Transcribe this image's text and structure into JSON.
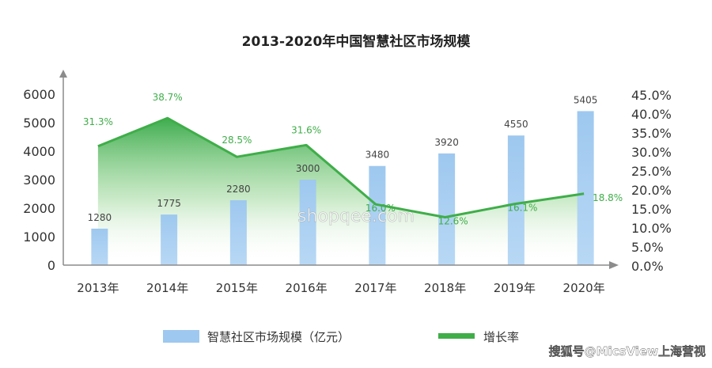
{
  "chart_data": {
    "type": "bar",
    "title": "2013-2020年中国智慧社区市场规模",
    "categories": [
      "2013年",
      "2014年",
      "2015年",
      "2016年",
      "2017年",
      "2018年",
      "2019年",
      "2020年"
    ],
    "series": [
      {
        "name": "智慧社区市场规模（亿元）",
        "type": "bar",
        "axis": "left",
        "values": [
          1280,
          1775,
          2280,
          3000,
          3480,
          3920,
          4550,
          5405
        ],
        "labels": [
          "1280",
          "1775",
          "2280",
          "3000",
          "3480",
          "3920",
          "4550",
          "5405"
        ]
      },
      {
        "name": "增长率",
        "type": "line",
        "axis": "right",
        "values": [
          31.3,
          38.7,
          28.5,
          31.6,
          16.0,
          12.6,
          16.1,
          18.8
        ],
        "labels": [
          "31.3%",
          "38.7%",
          "28.5%",
          "31.6%",
          "16.0%",
          "12.6%",
          "16.1%",
          "18.8%"
        ]
      }
    ],
    "y_left": {
      "range": [
        0,
        6000
      ],
      "ticks": [
        "0",
        "1000",
        "2000",
        "3000",
        "4000",
        "5000",
        "6000"
      ]
    },
    "y_right": {
      "range": [
        0,
        45
      ],
      "ticks": [
        "0.0%",
        "5.0%",
        "10.0%",
        "15.0%",
        "20.0%",
        "25.0%",
        "30.0%",
        "35.0%",
        "40.0%",
        "45.0%"
      ]
    },
    "grid": false,
    "legend_position": "bottom",
    "colors": {
      "bar": "#9ec8ef",
      "line": "#3fae49",
      "axis": "#8c8c8c"
    }
  },
  "watermark": "shopqee.com",
  "credit": "搜狐号@MicsView上海营视"
}
